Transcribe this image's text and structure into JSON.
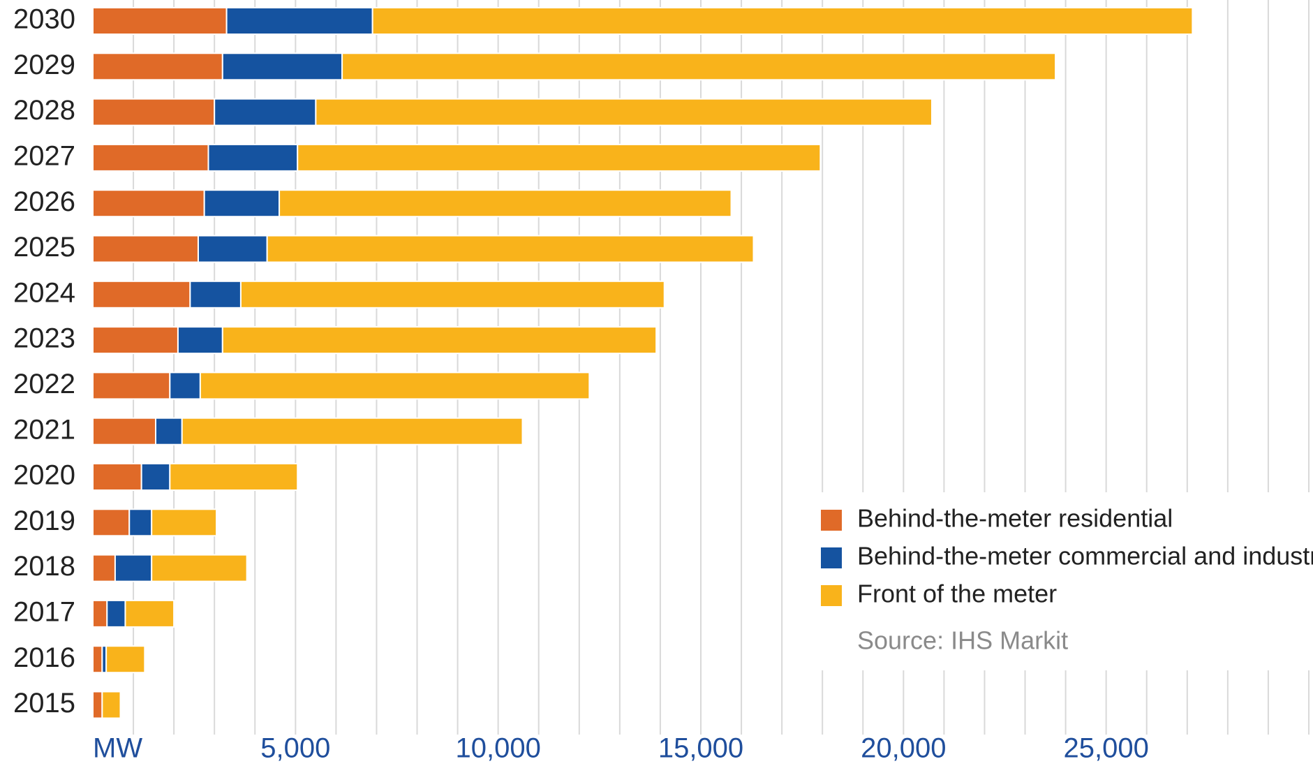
{
  "chart_data": {
    "type": "stacked-horizontal-bar",
    "categories": [
      "2030",
      "2029",
      "2028",
      "2027",
      "2026",
      "2025",
      "2024",
      "2023",
      "2022",
      "2021",
      "2020",
      "2019",
      "2018",
      "2017",
      "2016",
      "2015"
    ],
    "series": [
      {
        "name": "Behind-the-meter residential",
        "color": "#e06a28",
        "values": [
          3300,
          3200,
          3000,
          2850,
          2750,
          2600,
          2400,
          2100,
          1900,
          1550,
          1200,
          900,
          550,
          350,
          230,
          230
        ]
      },
      {
        "name": "Behind-the-meter commercial and industrial",
        "color": "#1553a0",
        "values": [
          3600,
          2950,
          2500,
          2200,
          1850,
          1700,
          1250,
          1100,
          750,
          650,
          700,
          550,
          900,
          450,
          100,
          0
        ]
      },
      {
        "name": "Front of the meter",
        "color": "#f9b31b",
        "values": [
          20230,
          17600,
          15200,
          12900,
          11150,
          12000,
          10450,
          10700,
          9600,
          8400,
          3150,
          1600,
          2350,
          1200,
          950,
          450
        ]
      }
    ],
    "xlim": [
      0,
      30000
    ],
    "xticks": [
      {
        "value": 0,
        "label": "MW"
      },
      {
        "value": 5000,
        "label": "5,000"
      },
      {
        "value": 10000,
        "label": "10,000"
      },
      {
        "value": 15000,
        "label": "15,000"
      },
      {
        "value": 20000,
        "label": "20,000"
      },
      {
        "value": 25000,
        "label": "25,000"
      }
    ],
    "grid_lines": [
      1000,
      2000,
      3000,
      4000,
      5000,
      6000,
      7000,
      8000,
      9000,
      10000,
      11000,
      12000,
      13000,
      14000,
      15000,
      16000,
      17000,
      18000,
      19000,
      20000,
      21000,
      22000,
      23000,
      24000,
      25000,
      26000,
      27000,
      28000,
      29000,
      30000
    ],
    "source": "Source: IHS Markit",
    "legend": "lower right"
  }
}
